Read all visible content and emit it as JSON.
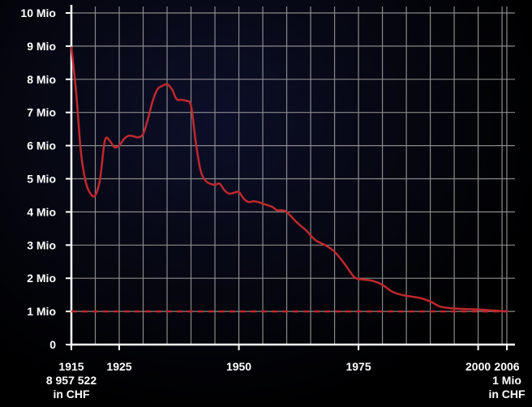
{
  "chart_data": {
    "type": "line",
    "title": "",
    "xlabel": "",
    "ylabel": "",
    "xlim": [
      1915,
      2006
    ],
    "ylim": [
      0,
      10
    ],
    "y_tick_labels": [
      "0",
      "1 Mio",
      "2 Mio",
      "3 Mio",
      "4 Mio",
      "5 Mio",
      "6 Mio",
      "7 Mio",
      "8 Mio",
      "9 Mio",
      "10 Mio"
    ],
    "x_tick_labels": [
      {
        "x": 1915,
        "lines": [
          "1915",
          "8 957 522",
          "in CHF"
        ]
      },
      {
        "x": 1925,
        "lines": [
          "1925"
        ]
      },
      {
        "x": 1950,
        "lines": [
          "1950"
        ]
      },
      {
        "x": 1975,
        "lines": [
          "1975"
        ]
      },
      {
        "x": 2000,
        "lines": [
          "2000"
        ]
      },
      {
        "x": 2006,
        "lines": [
          "2006",
          "1 Mio",
          "in CHF"
        ]
      }
    ],
    "grid": true,
    "reference_line": {
      "y": 1,
      "color": "#c0282d",
      "style": "dashed"
    },
    "series": [
      {
        "color": "#c0282d",
        "x": [
          1915,
          1916,
          1917,
          1918,
          1919,
          1920,
          1921,
          1922,
          1923,
          1924,
          1925,
          1926,
          1927,
          1928,
          1929,
          1930,
          1931,
          1932,
          1933,
          1934,
          1935,
          1936,
          1937,
          1938,
          1939,
          1940,
          1941,
          1942,
          1943,
          1944,
          1945,
          1946,
          1947,
          1948,
          1949,
          1950,
          1951,
          1952,
          1953,
          1954,
          1955,
          1956,
          1957,
          1958,
          1959,
          1960,
          1962,
          1964,
          1966,
          1968,
          1970,
          1972,
          1974,
          1975,
          1976,
          1978,
          1980,
          1982,
          1984,
          1986,
          1988,
          1990,
          1992,
          1994,
          1996,
          1998,
          2000,
          2002,
          2004,
          2006
        ],
        "values": [
          8.96,
          7.6,
          5.8,
          4.9,
          4.55,
          4.5,
          5.0,
          6.15,
          6.15,
          5.95,
          6.0,
          6.2,
          6.3,
          6.28,
          6.25,
          6.35,
          6.8,
          7.35,
          7.7,
          7.8,
          7.85,
          7.7,
          7.4,
          7.38,
          7.35,
          7.2,
          6.1,
          5.25,
          4.95,
          4.85,
          4.82,
          4.85,
          4.65,
          4.55,
          4.58,
          4.6,
          4.4,
          4.3,
          4.32,
          4.3,
          4.25,
          4.2,
          4.15,
          4.05,
          4.05,
          4.0,
          3.7,
          3.45,
          3.15,
          3.0,
          2.8,
          2.45,
          2.05,
          1.98,
          1.96,
          1.92,
          1.8,
          1.6,
          1.5,
          1.45,
          1.4,
          1.3,
          1.15,
          1.1,
          1.08,
          1.07,
          1.06,
          1.04,
          1.02,
          1.0
        ]
      }
    ]
  }
}
